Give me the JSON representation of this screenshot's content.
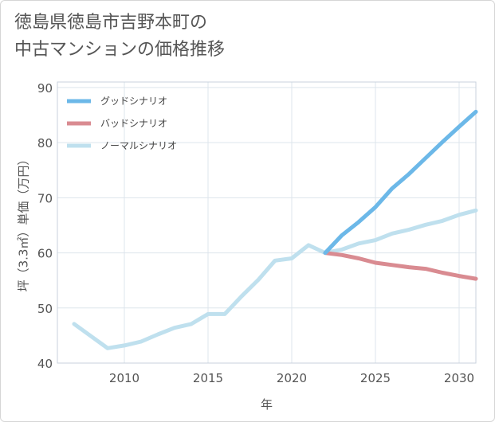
{
  "title_lines": [
    "徳島県徳島市吉野本町の",
    "中古マンションの価格推移"
  ],
  "chart_data": {
    "type": "line",
    "xlabel": "年",
    "ylabel": "坪（3.3㎡）単価（万円）",
    "xlim": [
      2006,
      2031
    ],
    "ylim": [
      40,
      91
    ],
    "xticks": [
      2010,
      2015,
      2020,
      2025,
      2030
    ],
    "yticks": [
      40,
      50,
      60,
      70,
      80,
      90
    ],
    "grid": true,
    "legend_position": "top-left",
    "series": [
      {
        "name": "グッドシナリオ",
        "color": "#6cb8e8",
        "x": [
          2022,
          2023,
          2024,
          2025,
          2026,
          2027,
          2028,
          2029,
          2030,
          2031
        ],
        "y": [
          60.0,
          63.2,
          65.6,
          68.3,
          71.7,
          74.3,
          77.2,
          80.1,
          82.9,
          85.6
        ]
      },
      {
        "name": "バッドシナリオ",
        "color": "#d98b91",
        "x": [
          2022,
          2023,
          2024,
          2025,
          2026,
          2027,
          2028,
          2029,
          2030,
          2031
        ],
        "y": [
          60.0,
          59.6,
          59.0,
          58.2,
          57.8,
          57.4,
          57.1,
          56.4,
          55.8,
          55.3
        ]
      },
      {
        "name": "ノーマルシナリオ",
        "color": "#bfe0ee",
        "x": [
          2007,
          2008,
          2009,
          2010,
          2011,
          2012,
          2013,
          2014,
          2015,
          2016,
          2017,
          2018,
          2019,
          2020,
          2021,
          2022,
          2023,
          2024,
          2025,
          2026,
          2027,
          2028,
          2029,
          2030,
          2031
        ],
        "y": [
          47.1,
          44.9,
          42.7,
          43.2,
          43.9,
          45.2,
          46.4,
          47.1,
          48.9,
          48.9,
          52.1,
          55.1,
          58.6,
          59.0,
          61.4,
          60.0,
          60.6,
          61.7,
          62.3,
          63.5,
          64.2,
          65.1,
          65.8,
          66.9,
          67.7
        ]
      }
    ]
  }
}
